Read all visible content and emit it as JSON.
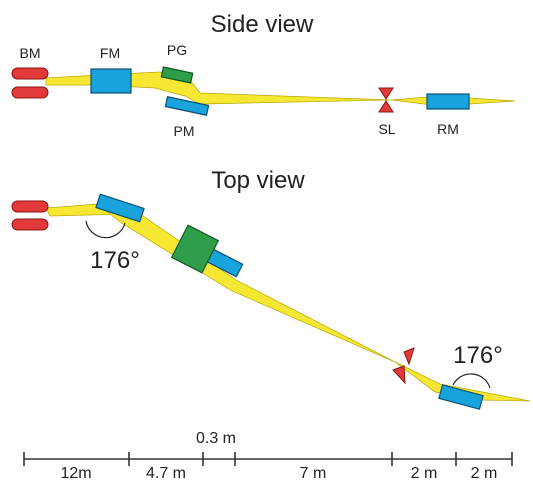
{
  "side_view": {
    "title": "Side view",
    "labels": {
      "bm": "BM",
      "fm": "FM",
      "pg": "PG",
      "pm": "PM",
      "sl": "SL",
      "rm": "RM"
    }
  },
  "top_view": {
    "title": "Top view",
    "angle_left": "176°",
    "angle_right": "176°"
  },
  "distances": {
    "segments": [
      "12m",
      "4.7 m",
      "0.3 m",
      "7 m",
      "2 m",
      "2 m"
    ]
  },
  "colors": {
    "beam": "#f6e733",
    "mirror": "#19a3dc",
    "grating": "#2f9e4a",
    "source_slit": "#e23a3a"
  }
}
